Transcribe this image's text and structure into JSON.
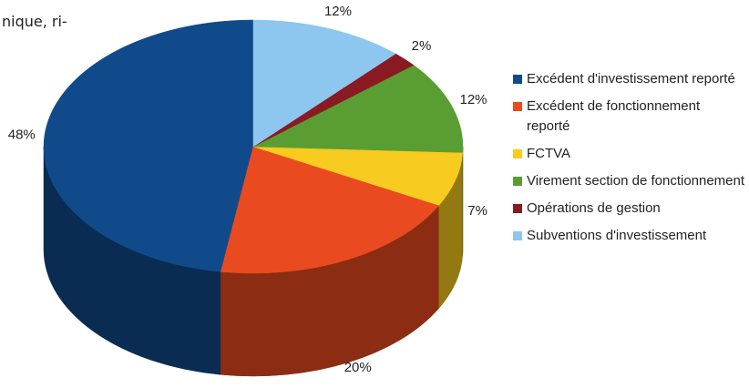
{
  "page_text": "nique, ri-",
  "chart_data": {
    "type": "pie3d",
    "categories": [
      "Excédent d'investissement reporté",
      "Excédent de fonctionnement reporté",
      "FCTVA",
      "Virement section de fonctionnement",
      "Opérations de gestion",
      "Subventions d'investissement"
    ],
    "values": [
      48,
      20,
      7,
      12,
      2,
      12
    ],
    "value_labels": [
      "48%",
      "20%",
      "7%",
      "12%",
      "2%",
      "12%"
    ],
    "colors": [
      "#114a8a",
      "#ea4a1f",
      "#f7cb1f",
      "#5a9e33",
      "#8a1a22",
      "#8dc6ee"
    ],
    "legend": "right"
  }
}
